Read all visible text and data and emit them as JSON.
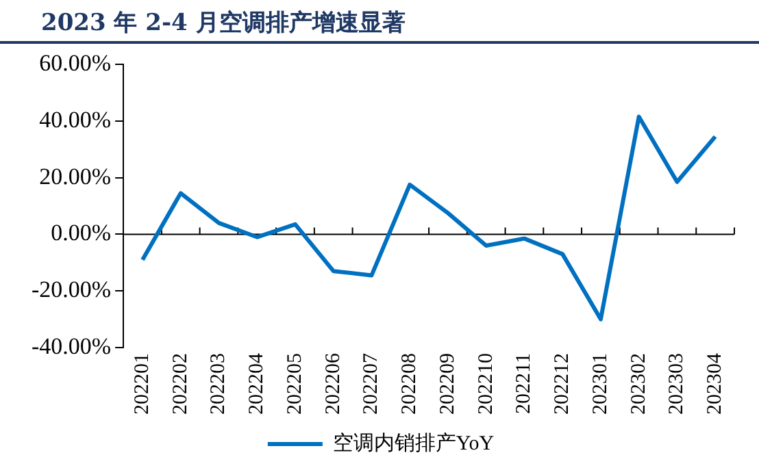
{
  "chart_data": {
    "type": "line",
    "title": "2023 年 2-4 月空调排产增速显著",
    "categories": [
      "202201",
      "202202",
      "202203",
      "202204",
      "202205",
      "202206",
      "202207",
      "202208",
      "202209",
      "202210",
      "202211",
      "202212",
      "202301",
      "202302",
      "202303",
      "202304"
    ],
    "series": [
      {
        "name": "空调内销排产YoY",
        "color": "#0070c0",
        "values": [
          -9,
          14.5,
          4,
          -1,
          3.5,
          -13,
          -14.5,
          17.5,
          7.5,
          -4,
          -1.5,
          -7,
          -30,
          41.5,
          18.5,
          34.5
        ]
      }
    ],
    "ylim": [
      -40,
      60
    ],
    "yticks": [
      {
        "value": -40,
        "label": "-40.00%"
      },
      {
        "value": -20,
        "label": "-20.00%"
      },
      {
        "value": 0,
        "label": "0.00%"
      },
      {
        "value": 20,
        "label": "20.00%"
      },
      {
        "value": 40,
        "label": "40.00%"
      },
      {
        "value": 60,
        "label": "60.00%"
      }
    ],
    "ref_lines": [
      {
        "axis": "y",
        "value": 0,
        "color": "#000000"
      }
    ],
    "grid": false,
    "legend": "bottom",
    "marker": "none",
    "line_style": "solid"
  }
}
